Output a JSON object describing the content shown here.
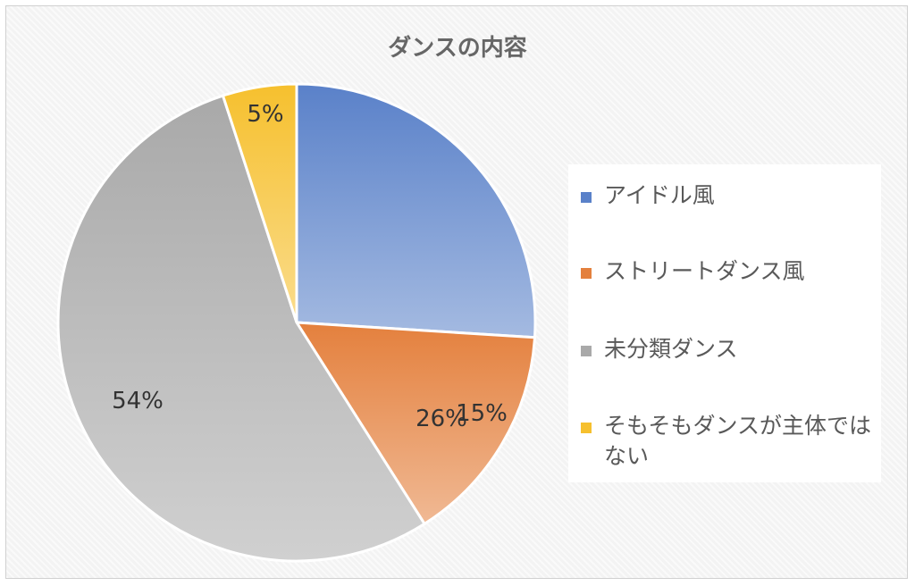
{
  "chart_data": {
    "type": "pie",
    "title": "ダンスの内容",
    "categories": [
      "アイドル風",
      "ストリートダンス風",
      "未分類ダンス",
      "そもそもダンスが主体ではない"
    ],
    "values": [
      26,
      15,
      54,
      5
    ],
    "labels": [
      "26%",
      "15%",
      "54%",
      "5%"
    ],
    "colors": [
      "#5a81c9",
      "#e4803d",
      "#a9a9a9",
      "#f6c02e"
    ],
    "legend_position": "right",
    "start_angle": "top, clockwise"
  }
}
